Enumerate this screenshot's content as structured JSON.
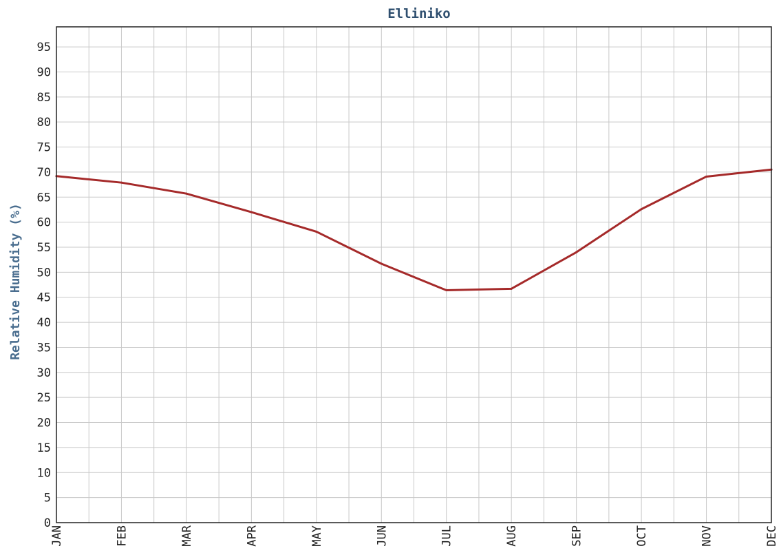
{
  "chart_data": {
    "type": "line",
    "title": "Elliniko",
    "xlabel": "",
    "ylabel": "Relative Humidity (%)",
    "categories": [
      "JAN",
      "FEB",
      "MAR",
      "APR",
      "MAY",
      "JUN",
      "JUL",
      "AUG",
      "SEP",
      "OCT",
      "NOV",
      "DEC"
    ],
    "series": [
      {
        "values": [
          69.2,
          67.9,
          65.7,
          62.0,
          58.1,
          51.7,
          46.4,
          46.7,
          54.0,
          62.6,
          69.1,
          70.5
        ]
      }
    ],
    "ylim": [
      0,
      99
    ],
    "yticks": [
      0,
      5,
      10,
      15,
      20,
      25,
      30,
      35,
      40,
      45,
      50,
      55,
      60,
      65,
      70,
      75,
      80,
      85,
      90,
      95
    ],
    "grid": true,
    "colors": {
      "series": "#a52a2a",
      "title": "#2f4f6f",
      "ylabel": "#4a6e8f",
      "grid": "#c8c8c8",
      "frame": "#222222"
    }
  }
}
